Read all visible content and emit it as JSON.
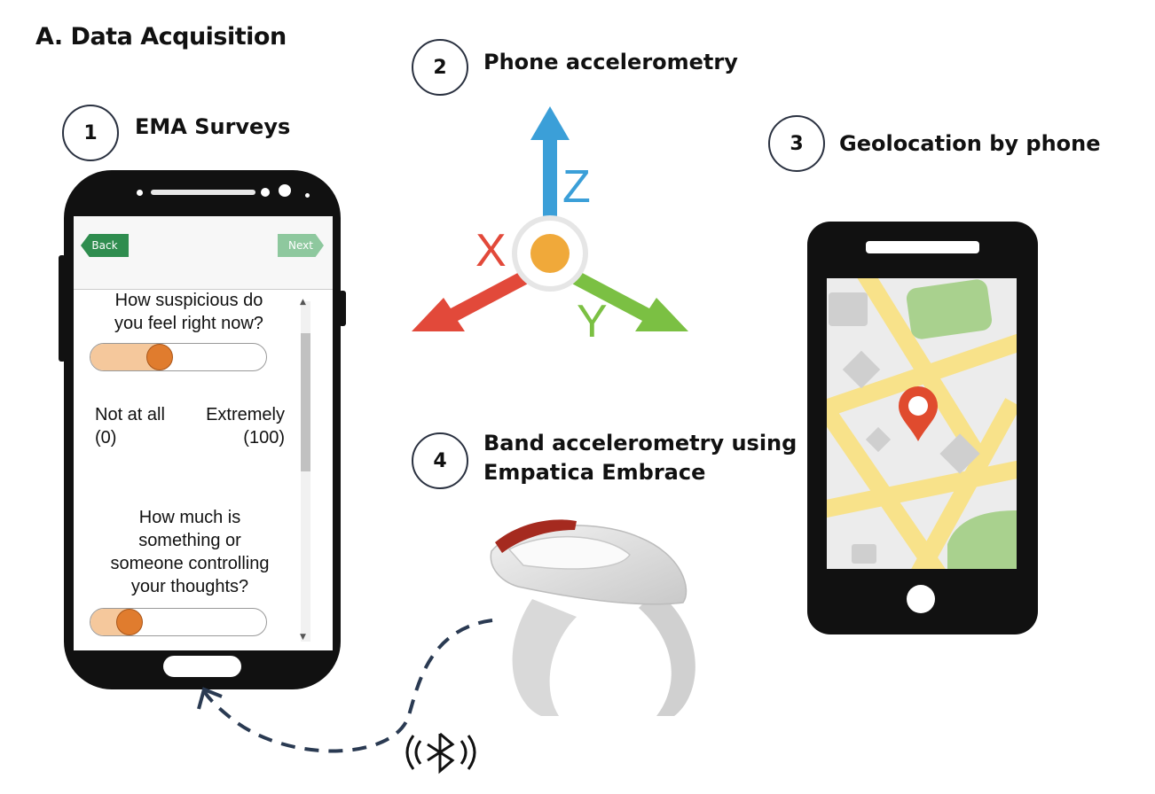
{
  "title": "A. Data Acquisition",
  "steps": [
    {
      "number": "1",
      "label": "EMA Surveys"
    },
    {
      "number": "2",
      "label": "Phone accelerometry"
    },
    {
      "number": "3",
      "label": "Geolocation by phone"
    },
    {
      "number": "4",
      "label_line1": "Band accelerometry using",
      "label_line2": "Empatica Embrace"
    }
  ],
  "axes": {
    "x": "X",
    "y": "Y",
    "z": "Z"
  },
  "ema_screen": {
    "back_label": "Back",
    "next_label": "Next",
    "question1_line1": "How suspicious do",
    "question1_line2": "you feel right now?",
    "question1_value": 0.37,
    "scale_min_label": "Not at all",
    "scale_min_value": "(0)",
    "scale_max_label": "Extremely",
    "scale_max_value": "(100)",
    "question2_lines": [
      "How much is",
      "something or",
      "someone controlling",
      "your thoughts?"
    ],
    "question2_value": 0.17
  },
  "colors": {
    "z_axis": "#3b9fd8",
    "x_axis": "#e2493a",
    "y_axis": "#7bc043",
    "origin": "#f0a93a",
    "map_pin": "#e04b2e",
    "map_road": "#f8e28a",
    "map_park": "#a9d18e",
    "slider_thumb": "#e07c2e",
    "connection": "#2a3a52"
  },
  "icons": [
    "bluetooth-icon",
    "map-pin-icon",
    "wristband-icon"
  ]
}
